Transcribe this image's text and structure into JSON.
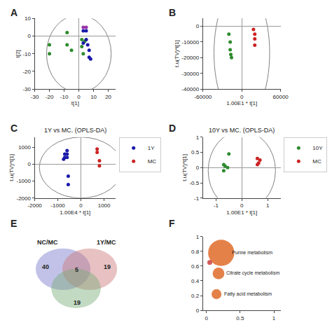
{
  "chart_data": [
    {
      "type": "scatter",
      "annotations": [
        {
          "text": "A"
        }
      ],
      "xlabel": "t[1]",
      "ylabel": "t[2]",
      "xlim": [
        -30,
        25
      ],
      "xticks": [
        -30,
        -20,
        -10,
        0,
        10,
        20
      ],
      "ylim": [
        -30,
        10
      ],
      "yticks": [
        -30,
        -20,
        -10,
        0,
        10
      ],
      "grid": false,
      "circle_center": [
        0,
        -10
      ],
      "circle_radius": 22,
      "series": [
        {
          "color": "#2e8b2e",
          "x": [
            -20,
            -20,
            -8,
            -8,
            -5,
            2,
            2,
            3,
            4
          ],
          "values": [
            -5,
            -10,
            2,
            -5,
            -8,
            -2,
            -6,
            -10,
            -3
          ]
        },
        {
          "color": "#1a1aaa",
          "x": [
            3,
            5,
            5,
            6,
            7,
            7,
            8,
            3
          ],
          "values": [
            3,
            3,
            -2,
            -5,
            -8,
            -12,
            -13,
            -4
          ]
        },
        {
          "color": "#9933aa",
          "x": [
            3,
            5
          ],
          "values": [
            5,
            5
          ]
        }
      ]
    },
    {
      "type": "scatter",
      "annotations": [
        {
          "text": "B"
        }
      ],
      "xlabel": "1.00E1 * t[1]",
      "ylabel": "t.u(TV)*t[1]",
      "xlim": [
        -60000,
        60000
      ],
      "xticks": [
        -60000,
        0,
        60000
      ],
      "ylim": [
        -40000,
        5000
      ],
      "yticks": [
        -40000,
        -30000,
        -20000,
        -10000,
        0
      ],
      "grid": false,
      "circle_center": [
        0,
        -17000
      ],
      "circle_radius": 43000,
      "series": [
        {
          "color": "#2e8b2e",
          "x": [
            -20000,
            -18000,
            -18000,
            -17000,
            -16000
          ],
          "values": [
            -5000,
            -10000,
            -15000,
            -18000,
            -20000
          ]
        },
        {
          "color": "#cc2222",
          "x": [
            18000,
            20000,
            20000,
            20000
          ],
          "values": [
            -2000,
            -5000,
            -8000,
            -12000
          ]
        }
      ]
    },
    {
      "type": "scatter",
      "title": "1Y vs MC. (OPLS-DA)",
      "annotations": [
        {
          "text": "C"
        }
      ],
      "xlabel": "1.00E4 * t[1]",
      "ylabel": "t.u(TV)*t[1]",
      "xlim": [
        -2000,
        1500
      ],
      "xticks": [
        -2000,
        -1000,
        0,
        1000
      ],
      "ylim": [
        -2000,
        1600
      ],
      "yticks": [
        -2000,
        -1000,
        0,
        1000
      ],
      "grid": false,
      "legend": "upper right",
      "circle_center": [
        0,
        -200
      ],
      "circle_radius": 1800,
      "series": [
        {
          "name": "1Y",
          "color": "#1a1aaa",
          "x": [
            -600,
            -700,
            -600,
            -700,
            -600,
            -750,
            -550,
            -550
          ],
          "values": [
            800,
            600,
            600,
            400,
            400,
            300,
            -700,
            -1200
          ]
        },
        {
          "name": "MC",
          "color": "#cc2222",
          "x": [
            700,
            700,
            800,
            800
          ],
          "values": [
            900,
            700,
            200,
            -100
          ]
        }
      ]
    },
    {
      "type": "scatter",
      "title": "10Y vs MC. (OPLS-DA)",
      "annotations": [
        {
          "text": "D"
        }
      ],
      "xlabel": "1.00E1 * t[1]",
      "ylabel": "t.u(TV)*t[1]",
      "xlim": [
        -1.5,
        1.5
      ],
      "xticks": [
        -1,
        0,
        1
      ],
      "ylim": [
        -1.0,
        1.0
      ],
      "yticks": [
        -1,
        -0.5,
        0,
        0.5,
        1
      ],
      "grid": false,
      "legend": "upper right",
      "circle_center": [
        0,
        -0.1
      ],
      "circle_radius": 1.3,
      "series": [
        {
          "name": "10Y",
          "color": "#2e8b2e",
          "x": [
            -0.5,
            -0.7,
            -0.65,
            -0.55,
            -0.7
          ],
          "values": [
            0.45,
            0.1,
            0.05,
            0.0,
            -0.1
          ]
        },
        {
          "name": "MC",
          "color": "#cc2222",
          "x": [
            0.6,
            0.7,
            0.65,
            0.6
          ],
          "values": [
            0.3,
            0.25,
            0.15,
            0.1
          ]
        }
      ]
    },
    {
      "type": "venn",
      "annotations": [
        {
          "text": "E"
        },
        {
          "x": -0.38,
          "y": 0.18,
          "text": "40"
        },
        {
          "x": 0.43,
          "y": 0.18,
          "text": "19"
        },
        {
          "x": 0.03,
          "y": -0.32,
          "text": "19"
        },
        {
          "x": 0.03,
          "y": 0.14,
          "text": "5"
        },
        {
          "x": -0.35,
          "y": 0.52,
          "text": "NC/MC"
        },
        {
          "x": 0.42,
          "y": 0.52,
          "text": "1Y/MC"
        }
      ],
      "xlim": [
        -0.82,
        0.88
      ],
      "ylim": [
        -0.65,
        0.65
      ],
      "tick_labels": false,
      "grid": false,
      "ellipses": [
        {
          "center": [
            -0.15,
            0.15
          ],
          "width": 0.72,
          "height": 0.58,
          "color": "#7777cc"
        },
        {
          "center": [
            0.2,
            0.15
          ],
          "width": 0.72,
          "height": 0.58,
          "color": "#cc7777"
        },
        {
          "center": [
            0.02,
            -0.12
          ],
          "width": 0.65,
          "height": 0.55,
          "color": "#77aa77"
        }
      ]
    },
    {
      "type": "bubble",
      "annotations": [
        {
          "text": "F"
        },
        {
          "x": 0.36,
          "y": 0.78,
          "text": "Purine metabolism"
        },
        {
          "x": 0.27,
          "y": 0.5,
          "text": "Citrate cycle metabolism"
        },
        {
          "x": 0.24,
          "y": 0.22,
          "text": "Fatty acid metabolism"
        }
      ],
      "xlim": [
        -0.05,
        1.1
      ],
      "xticks": [
        0,
        0.5,
        1
      ],
      "ylim": [
        0.0,
        1.0
      ],
      "yticks": [
        0,
        0.2,
        0.4,
        0.6,
        0.8,
        1
      ],
      "grid": false,
      "series": [
        {
          "x": [
            0.22,
            0.18,
            0.15,
            0.05
          ],
          "values": [
            0.78,
            0.5,
            0.22,
            0.65
          ],
          "sizes": [
            350,
            70,
            50,
            12
          ],
          "colors": [
            "#e07030",
            "#e07030",
            "#e07030",
            "#cc4444"
          ]
        }
      ]
    }
  ]
}
